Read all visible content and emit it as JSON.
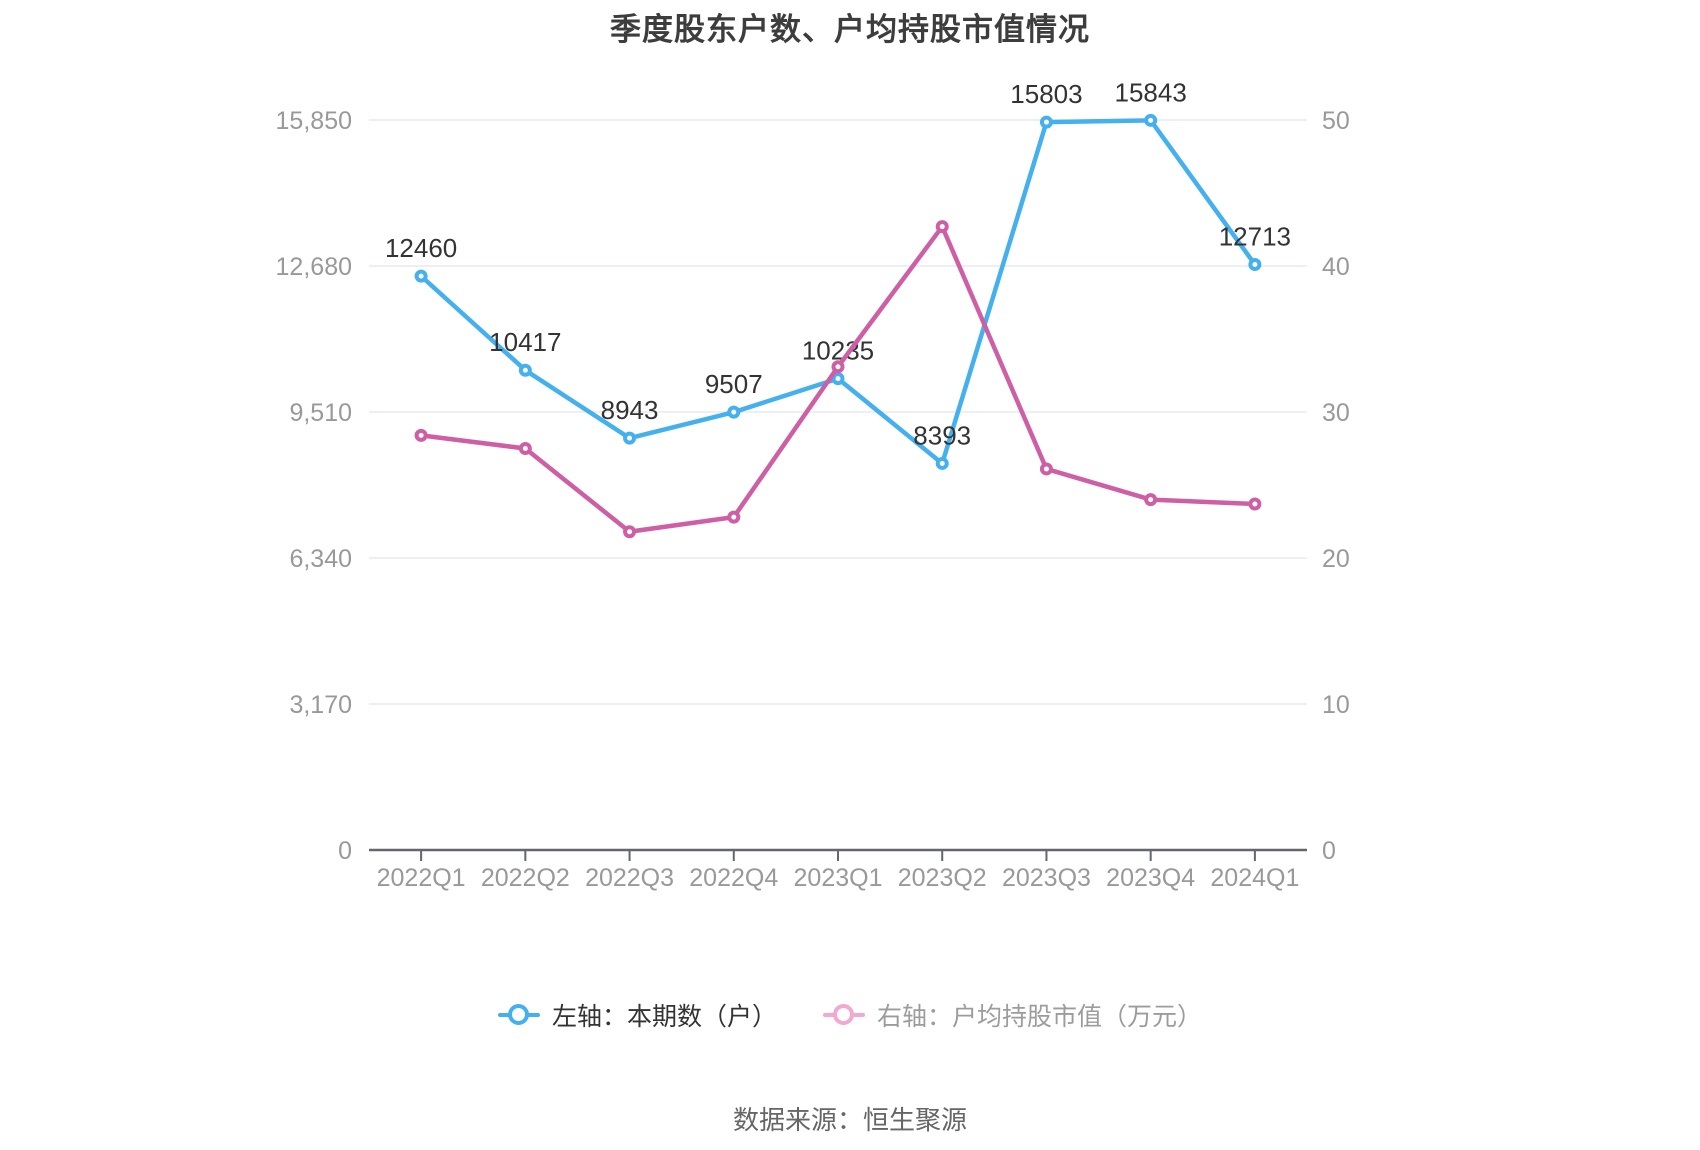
{
  "title": "季度股东户数、户均持股市值情况",
  "source": "数据来源：恒生聚源",
  "legend": [
    {
      "label": "左轴：本期数（户）",
      "marker_color": "#45b0ee",
      "text_color": "#333333"
    },
    {
      "label": "右轴：户均持股市值（万元）",
      "marker_color": "#f2a8d0",
      "text_color": "#9c9c9c"
    }
  ],
  "chart_data": {
    "type": "line",
    "title": "季度股东户数、户均持股市值情况",
    "categories": [
      "2022Q1",
      "2022Q2",
      "2022Q3",
      "2022Q4",
      "2023Q1",
      "2023Q2",
      "2023Q3",
      "2023Q4",
      "2024Q1"
    ],
    "series": [
      {
        "name": "左轴：本期数（户）",
        "axis": "left",
        "color": "#45b0ee",
        "values": [
          12460,
          10417,
          8943,
          9507,
          10235,
          8393,
          15803,
          15843,
          12713
        ],
        "data_labels": [
          "12460",
          "10417",
          "8943",
          "9507",
          "10235",
          "8393",
          "15803",
          "15843",
          "12713"
        ],
        "labels_visible": true
      },
      {
        "name": "右轴：户均持股市值（万元）",
        "axis": "right",
        "color": "#ce5fa5",
        "values": [
          28.4,
          27.5,
          21.8,
          22.8,
          33.1,
          42.7,
          26.1,
          24.0,
          23.7
        ],
        "labels_visible": false
      }
    ],
    "left_axis": {
      "max": 15850,
      "ticks": [
        0,
        3170,
        6340,
        9510,
        12680,
        15850
      ],
      "tick_labels": [
        "0",
        "3,170",
        "6,340",
        "9,510",
        "12,680",
        "15,850"
      ]
    },
    "right_axis": {
      "max": 50,
      "ticks": [
        0,
        10,
        20,
        30,
        40,
        50
      ],
      "tick_labels": [
        "0",
        "10",
        "20",
        "30",
        "40",
        "50"
      ]
    },
    "grid": true,
    "legend_position": "bottom",
    "colors": {
      "grid_line": "#e6eaf4",
      "axis_line": "#62666d",
      "tick_label": "#999999",
      "value_label": "#333333",
      "title": "#3d3d3d"
    }
  }
}
